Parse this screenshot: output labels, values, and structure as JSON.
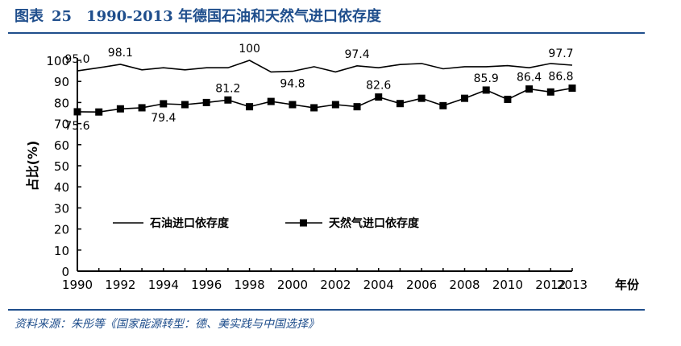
{
  "header": {
    "label": "图表",
    "number": "25",
    "title": "1990-2013 年德国石油和天然气进口依存度"
  },
  "source": "资料来源：朱彤等《国家能源转型：德、美实践与中国选择》",
  "chart_data": {
    "type": "line",
    "title": "1990-2013 年德国石油和天然气进口依存度",
    "xlabel": "年份",
    "ylabel": "占比(%)",
    "xlim": [
      1990,
      2013
    ],
    "ylim": [
      0,
      100
    ],
    "x_ticks": [
      1990,
      1992,
      1994,
      1996,
      1998,
      2000,
      2002,
      2004,
      2006,
      2008,
      2010,
      2012,
      2013
    ],
    "y_ticks": [
      0,
      10,
      20,
      30,
      40,
      50,
      60,
      70,
      80,
      90,
      100
    ],
    "grid": false,
    "legend_position": "center-left",
    "x": [
      1990,
      1991,
      1992,
      1993,
      1994,
      1995,
      1996,
      1997,
      1998,
      1999,
      2000,
      2001,
      2002,
      2003,
      2004,
      2005,
      2006,
      2007,
      2008,
      2009,
      2010,
      2011,
      2012,
      2013
    ],
    "series": [
      {
        "name": "石油进口依存度",
        "marker": "none",
        "color": "#000000",
        "values": [
          95.0,
          96.5,
          98.1,
          95.5,
          96.5,
          95.5,
          96.5,
          96.5,
          100,
          94.5,
          94.8,
          97.0,
          94.5,
          97.4,
          96.5,
          98.0,
          98.5,
          96.0,
          97.0,
          97.0,
          97.5,
          96.5,
          98.5,
          97.7
        ],
        "data_labels": [
          {
            "x": 1990,
            "text": "95.0"
          },
          {
            "x": 1992,
            "text": "98.1"
          },
          {
            "x": 1998,
            "text": "100"
          },
          {
            "x": 2000,
            "text": "94.8"
          },
          {
            "x": 2003,
            "text": "97.4"
          },
          {
            "x": 2013,
            "text": "97.7"
          }
        ]
      },
      {
        "name": "天然气进口依存度",
        "marker": "square",
        "color": "#000000",
        "values": [
          75.6,
          75.5,
          77.0,
          77.5,
          79.4,
          79.0,
          80.0,
          81.2,
          78.0,
          80.5,
          79.0,
          77.5,
          79.0,
          78.0,
          82.6,
          79.5,
          82.0,
          78.5,
          82.0,
          85.9,
          81.5,
          86.4,
          85.0,
          86.8
        ],
        "data_labels": [
          {
            "x": 1990,
            "text": "75.6"
          },
          {
            "x": 1994,
            "text": "79.4"
          },
          {
            "x": 1997,
            "text": "81.2"
          },
          {
            "x": 2004,
            "text": "82.6"
          },
          {
            "x": 2009,
            "text": "85.9"
          },
          {
            "x": 2011,
            "text": "86.4"
          },
          {
            "x": 2013,
            "text": "86.8"
          }
        ]
      }
    ]
  }
}
